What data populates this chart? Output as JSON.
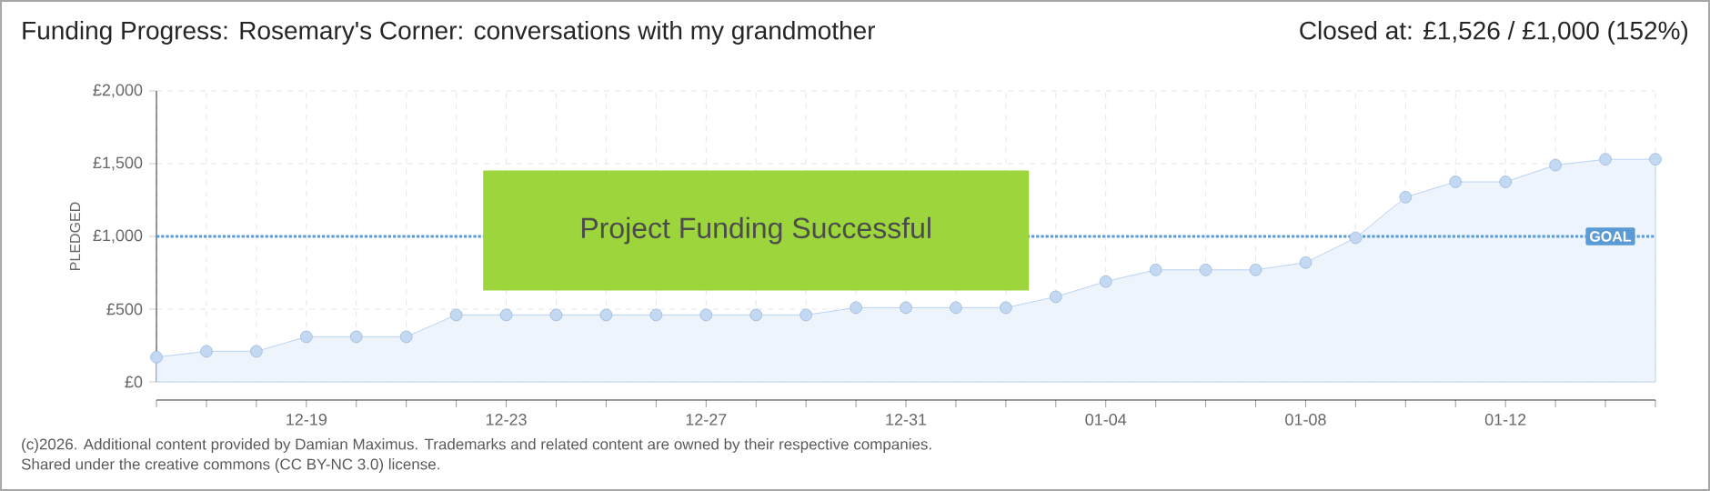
{
  "chart_data": {
    "type": "area",
    "title": "Funding Progress: Rosemary's Corner: conversations with my grandmother",
    "subtitle": "Closed at:  £1,526 /  £1,000 (152%)",
    "ylabel": "PLEDGED",
    "categories": [
      null,
      null,
      null,
      "12-19",
      null,
      null,
      null,
      "12-23",
      null,
      null,
      null,
      "12-27",
      null,
      null,
      null,
      "12-31",
      null,
      null,
      null,
      "01-04",
      null,
      null,
      null,
      "01-08",
      null,
      null,
      null,
      "01-12",
      null,
      null,
      null
    ],
    "values": [
      170,
      210,
      210,
      310,
      310,
      310,
      460,
      460,
      460,
      460,
      460,
      460,
      460,
      460,
      510,
      510,
      510,
      510,
      585,
      690,
      770,
      770,
      770,
      820,
      990,
      1270,
      1375,
      1375,
      1490,
      1530,
      1530
    ],
    "color": "#a9c9ee",
    "ylim": [
      0,
      2000
    ],
    "yticks": [
      {
        "value": 0,
        "label": "£0"
      },
      {
        "value": 500,
        "label": "£500"
      },
      {
        "value": 1000,
        "label": "£1,000"
      },
      {
        "value": 1500,
        "label": "£1,500"
      },
      {
        "value": 2000,
        "label": "£2,000"
      }
    ],
    "grid": true,
    "marker": "circle",
    "ref_lines": [
      {
        "axis": "y",
        "value": 1000,
        "label": "GOAL",
        "color": "#5b9bd5",
        "line_style": "dotted"
      }
    ],
    "annotations": [
      "Project Funding Successful",
      "(c)2026. Additional content provided by Damian Maximus. Trademarks and related content are owned by their respective companies.",
      "Shared under the creative commons (CC BY-NC 3.0) license."
    ]
  }
}
